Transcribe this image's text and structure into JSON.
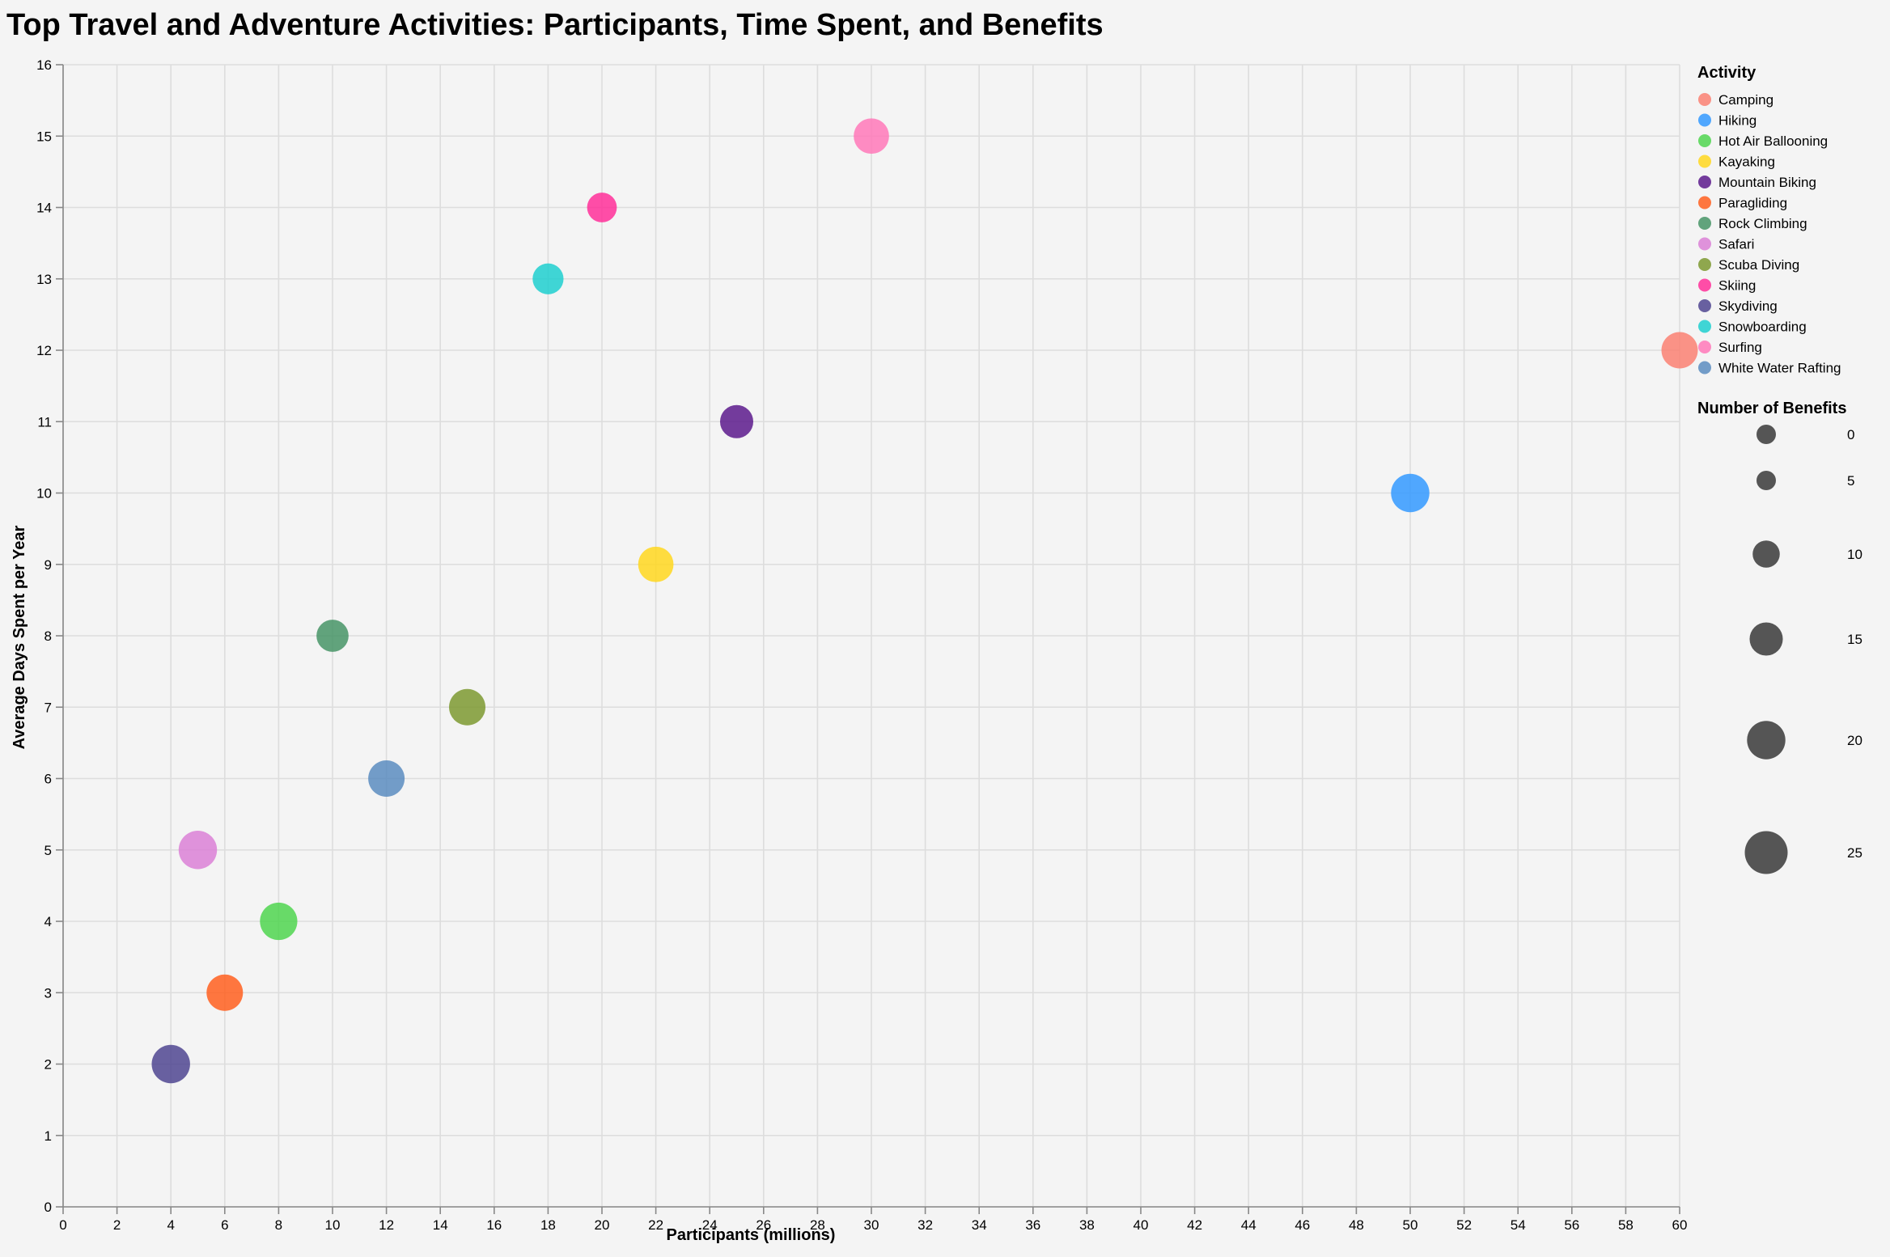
{
  "chart_data": {
    "type": "scatter",
    "title": "Top Travel and Adventure Activities: Participants, Time Spent, and Benefits",
    "xlabel": "Participants (millions)",
    "ylabel": "Average Days Spent per Year",
    "xlim": [
      0,
      60
    ],
    "ylim": [
      0,
      16
    ],
    "x_ticks": [
      0,
      2,
      4,
      6,
      8,
      10,
      12,
      14,
      16,
      18,
      20,
      22,
      24,
      26,
      28,
      30,
      32,
      34,
      36,
      38,
      40,
      42,
      44,
      46,
      48,
      50,
      52,
      54,
      56,
      58,
      60
    ],
    "y_ticks": [
      0,
      1,
      2,
      3,
      4,
      5,
      6,
      7,
      8,
      9,
      10,
      11,
      12,
      13,
      14,
      15,
      16
    ],
    "grid": true,
    "legend_placement": "right",
    "color_legend_title": "Activity",
    "size_legend_title": "Number of Benefits",
    "size_legend_values": [
      0,
      5,
      10,
      15,
      20,
      25
    ],
    "points": [
      {
        "activity": "Camping",
        "participants": 60,
        "days": 12,
        "benefits": 18,
        "color": "#fa8072"
      },
      {
        "activity": "Hiking",
        "participants": 50,
        "days": 10,
        "benefits": 20,
        "color": "#3399ff"
      },
      {
        "activity": "Hot Air Ballooning",
        "participants": 8,
        "days": 4,
        "benefits": 19,
        "color": "#4fd54f"
      },
      {
        "activity": "Kayaking",
        "participants": 22,
        "days": 9,
        "benefits": 17,
        "color": "#ffd71f"
      },
      {
        "activity": "Mountain Biking",
        "participants": 25,
        "days": 11,
        "benefits": 15,
        "color": "#5c1a8c"
      },
      {
        "activity": "Paragliding",
        "participants": 6,
        "days": 3,
        "benefits": 18,
        "color": "#ff5f1f"
      },
      {
        "activity": "Rock Climbing",
        "participants": 10,
        "days": 8,
        "benefits": 14,
        "color": "#479466"
      },
      {
        "activity": "Safari",
        "participants": 5,
        "days": 5,
        "benefits": 20,
        "color": "#da80d6"
      },
      {
        "activity": "Scuba Diving",
        "participants": 15,
        "days": 7,
        "benefits": 18,
        "color": "#7c9930"
      },
      {
        "activity": "Skiing",
        "participants": 20,
        "days": 14,
        "benefits": 12,
        "color": "#ff2f99"
      },
      {
        "activity": "Skydiving",
        "participants": 4,
        "days": 2,
        "benefits": 20,
        "color": "#4f4591"
      },
      {
        "activity": "Snowboarding",
        "participants": 18,
        "days": 13,
        "benefits": 13,
        "color": "#1fcfcf"
      },
      {
        "activity": "Surfing",
        "participants": 30,
        "days": 15,
        "benefits": 17,
        "color": "#ff78b8"
      },
      {
        "activity": "White Water Rafting",
        "participants": 12,
        "days": 6,
        "benefits": 18,
        "color": "#5b8cbf"
      }
    ]
  }
}
